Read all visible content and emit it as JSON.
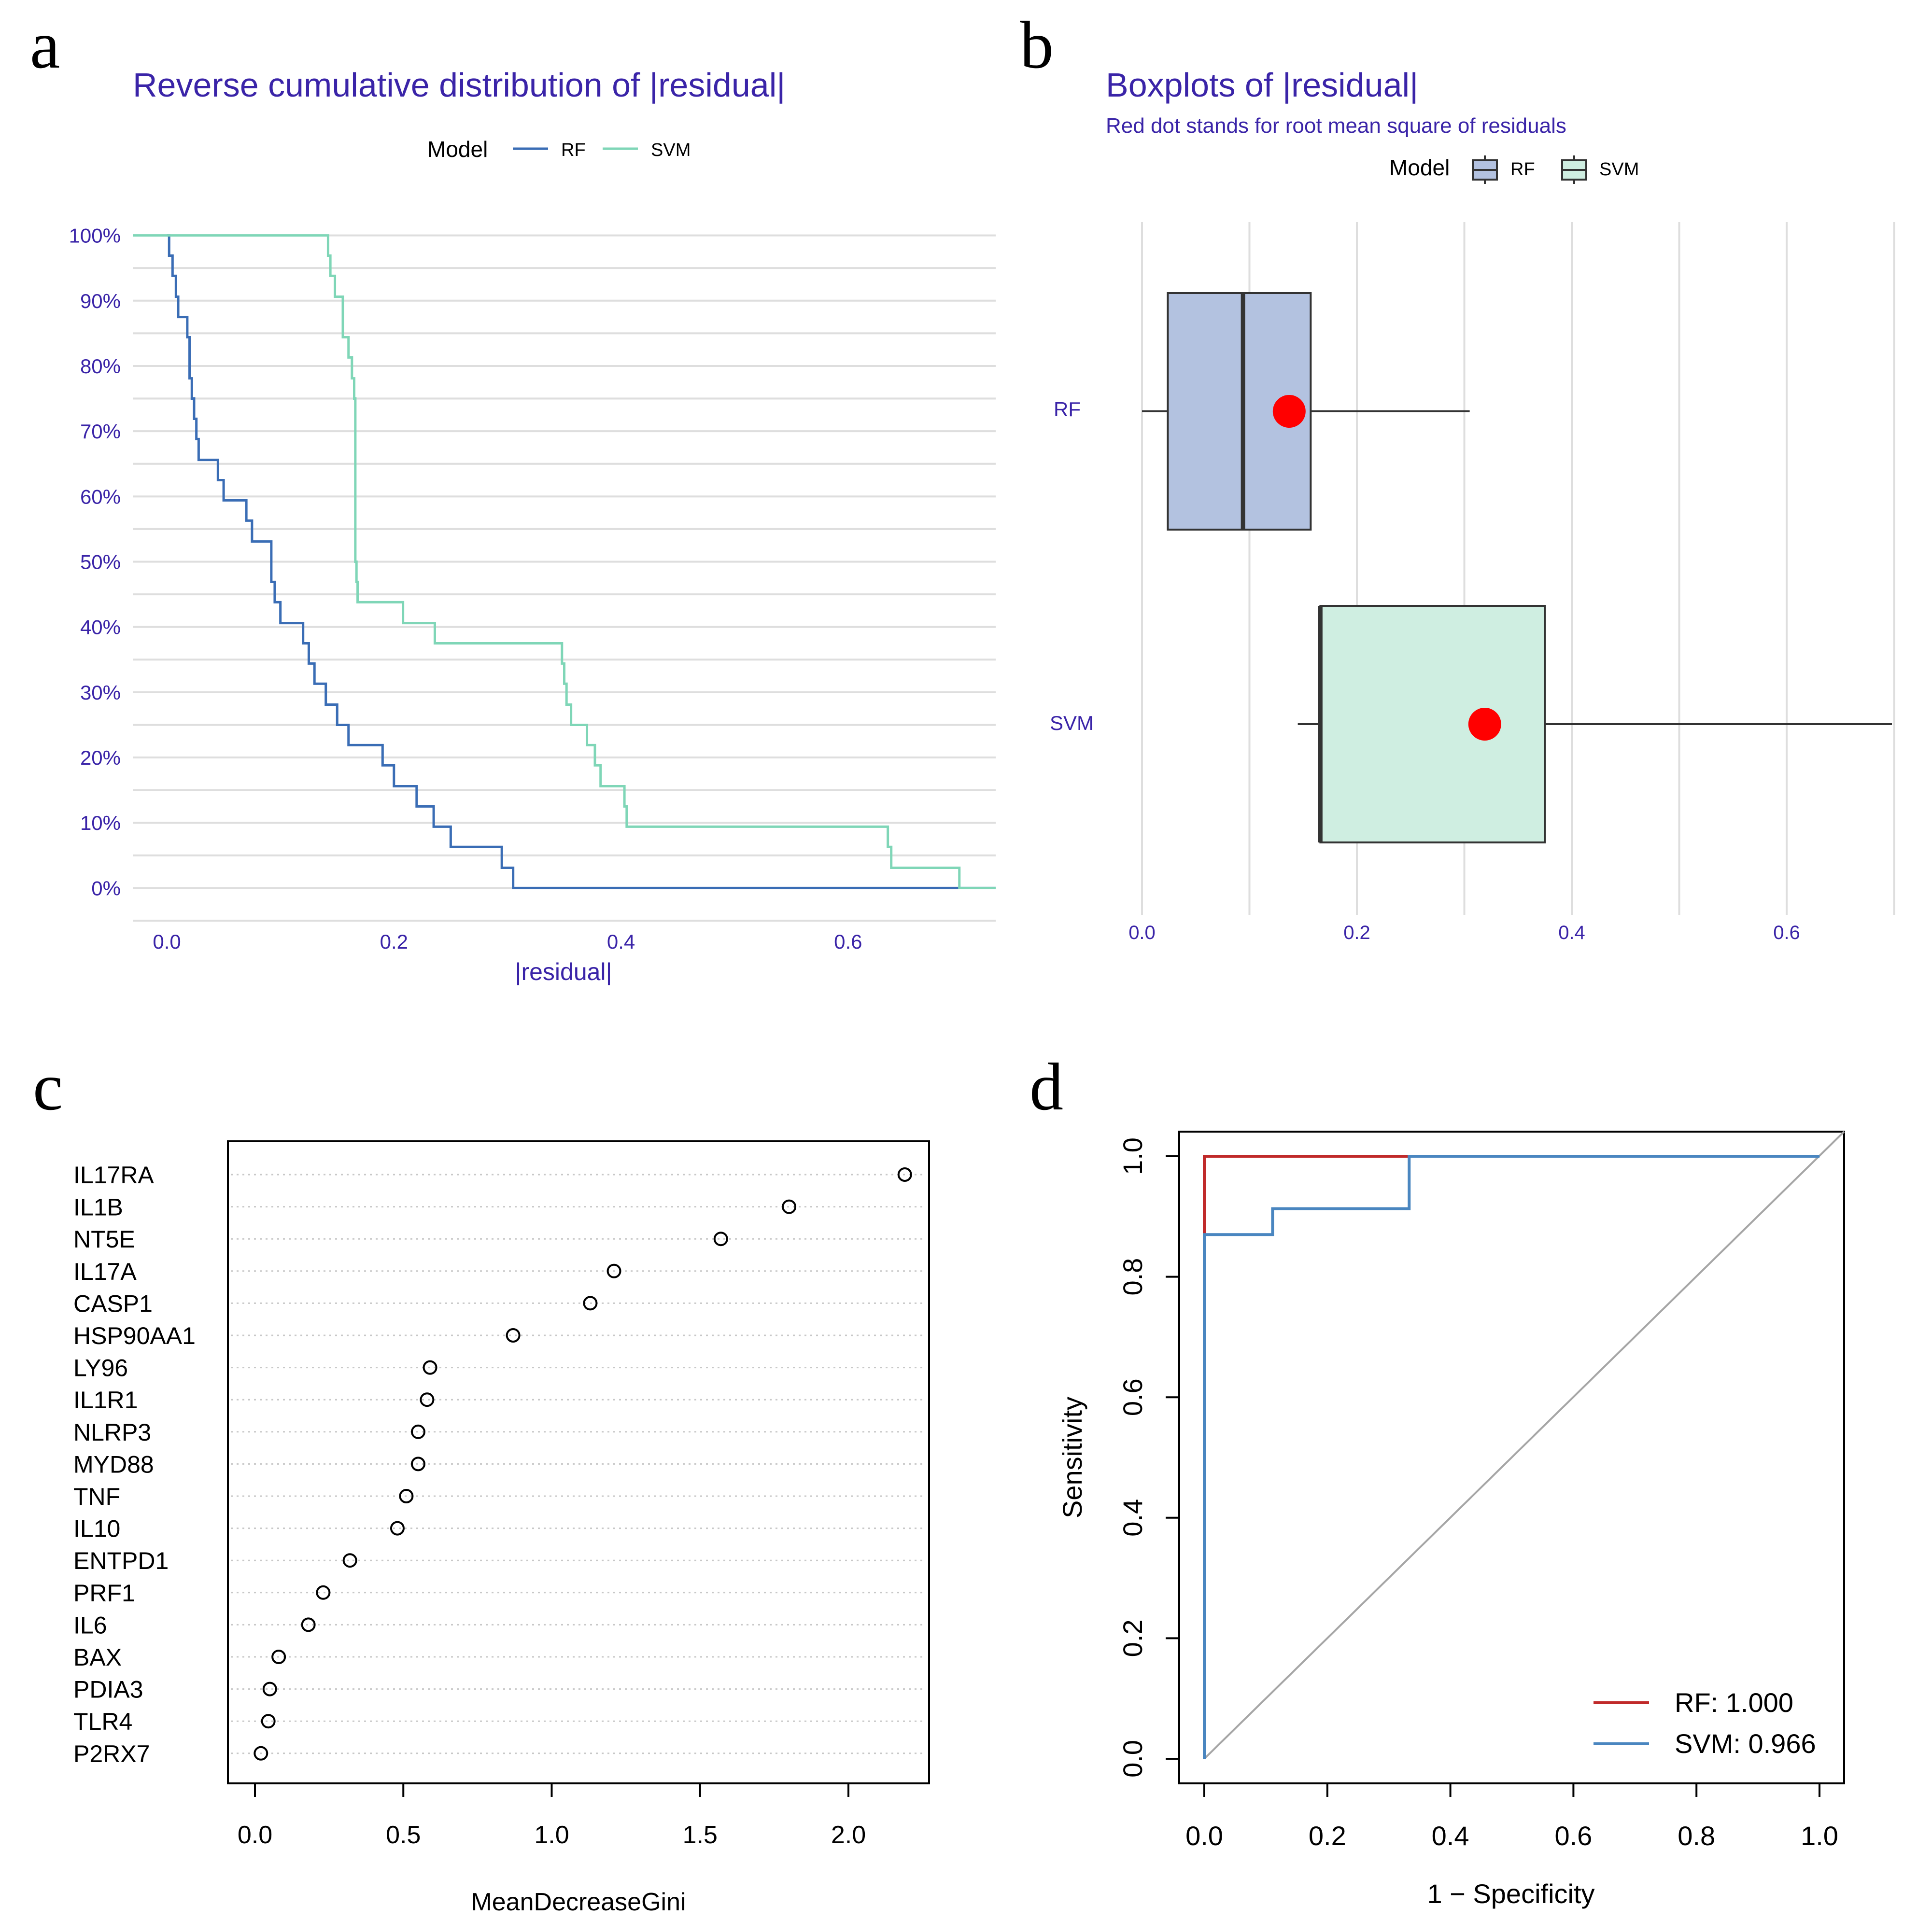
{
  "colors": {
    "panel_title": "#3a24a8",
    "grid": "#dedede",
    "rf_line": "#3a6db5",
    "svm_line": "#7fd6b7",
    "rf_fill": "#b3c2e0",
    "svm_fill": "#cfeee1",
    "rmse_dot": "#ff0000",
    "roc_rf": "#c02a2a",
    "roc_svm": "#4a86c0",
    "diagonal": "#a6a6a6",
    "dotline": "#c8c8c8",
    "ink": "#000000"
  },
  "chart_data": [
    {
      "panel": "a",
      "type": "line",
      "title": "Reverse cumulative distribution of |residual|",
      "xlabel": "|residual|",
      "ylabel": "",
      "xlim": [
        -0.03,
        0.73
      ],
      "ylim": [
        -0.05,
        1.05
      ],
      "xticks": [
        0.0,
        0.2,
        0.4,
        0.6
      ],
      "xtick_labels": [
        "0.0",
        "0.2",
        "0.4",
        "0.6"
      ],
      "yticks": [
        0,
        0.1,
        0.2,
        0.3,
        0.4,
        0.5,
        0.6,
        0.7,
        0.8,
        0.9,
        1.0
      ],
      "ytick_labels": [
        "0%",
        "10%",
        "20%",
        "30%",
        "40%",
        "50%",
        "60%",
        "70%",
        "80%",
        "90%",
        "100%"
      ],
      "legend": {
        "title": "Model",
        "entries": [
          "RF",
          "SVM"
        ],
        "position": "top"
      },
      "series": [
        {
          "name": "RF",
          "x": [
            0.0,
            0.002,
            0.005,
            0.008,
            0.01,
            0.012,
            0.018,
            0.02,
            0.022,
            0.024,
            0.026,
            0.028,
            0.045,
            0.05,
            0.07,
            0.075,
            0.08,
            0.092,
            0.095,
            0.1,
            0.12,
            0.125,
            0.13,
            0.14,
            0.15,
            0.16,
            0.19,
            0.2,
            0.22,
            0.235,
            0.25,
            0.295,
            0.305,
            0.73
          ],
          "y": [
            1.0,
            0.969,
            0.938,
            0.906,
            0.875,
            0.875,
            0.844,
            0.781,
            0.75,
            0.719,
            0.688,
            0.656,
            0.625,
            0.594,
            0.563,
            0.531,
            0.531,
            0.469,
            0.438,
            0.406,
            0.375,
            0.344,
            0.313,
            0.281,
            0.25,
            0.219,
            0.188,
            0.156,
            0.125,
            0.094,
            0.063,
            0.031,
            0.0,
            0.0
          ]
        },
        {
          "name": "SVM",
          "x": [
            -0.03,
            0.142,
            0.144,
            0.148,
            0.155,
            0.16,
            0.163,
            0.165,
            0.166,
            0.167,
            0.168,
            0.208,
            0.236,
            0.348,
            0.35,
            0.352,
            0.356,
            0.37,
            0.377,
            0.382,
            0.403,
            0.405,
            0.43,
            0.44,
            0.635,
            0.638,
            0.64,
            0.698,
            0.73
          ],
          "y": [
            1.0,
            0.969,
            0.938,
            0.906,
            0.844,
            0.813,
            0.781,
            0.75,
            0.5,
            0.469,
            0.438,
            0.406,
            0.375,
            0.344,
            0.313,
            0.281,
            0.25,
            0.219,
            0.188,
            0.156,
            0.125,
            0.094,
            0.094,
            0.094,
            0.063,
            0.031,
            0.031,
            0.0,
            0.0
          ]
        }
      ]
    },
    {
      "panel": "b",
      "type": "box",
      "title": "Boxplots of |residual|",
      "subtitle": "Red dot stands for root mean square of residuals",
      "xlim": [
        -0.01,
        0.7
      ],
      "xticks": [
        0.0,
        0.2,
        0.4,
        0.6
      ],
      "xtick_labels": [
        "0.0",
        "0.2",
        "0.4",
        "0.6"
      ],
      "legend": {
        "title": "Model",
        "entries": [
          "RF",
          "SVM"
        ],
        "position": "top"
      },
      "boxes": [
        {
          "name": "RF",
          "min": 0.0,
          "q1": 0.024,
          "median": 0.094,
          "q3": 0.157,
          "max": 0.305,
          "rmse": 0.137
        },
        {
          "name": "SVM",
          "min": 0.145,
          "q1": 0.166,
          "median": 0.166,
          "q3": 0.375,
          "max": 0.698,
          "rmse": 0.319
        }
      ]
    },
    {
      "panel": "c",
      "type": "scatter",
      "title": "",
      "xlabel": "MeanDecreaseGini",
      "ylabel": "",
      "xlim": [
        -0.09,
        2.27
      ],
      "xticks": [
        0.0,
        0.5,
        1.0,
        1.5,
        2.0
      ],
      "xtick_labels": [
        "0.0",
        "0.5",
        "1.0",
        "1.5",
        "2.0"
      ],
      "categories": [
        "IL17RA",
        "IL1B",
        "NT5E",
        "IL17A",
        "CASP1",
        "HSP90AA1",
        "LY96",
        "IL1R1",
        "NLRP3",
        "MYD88",
        "TNF",
        "IL10",
        "ENTPD1",
        "PRF1",
        "IL6",
        "BAX",
        "PDIA3",
        "TLR4",
        "P2RX7"
      ],
      "values": [
        2.19,
        1.8,
        1.57,
        1.21,
        1.13,
        0.87,
        0.59,
        0.58,
        0.55,
        0.55,
        0.51,
        0.48,
        0.32,
        0.23,
        0.18,
        0.08,
        0.05,
        0.045,
        0.02
      ]
    },
    {
      "panel": "d",
      "type": "line",
      "title": "",
      "xlabel": "1 − Specificity",
      "ylabel": "Sensitivity",
      "xlim": [
        -0.04,
        1.04
      ],
      "ylim": [
        -0.04,
        1.04
      ],
      "xticks": [
        0.0,
        0.2,
        0.4,
        0.6,
        0.8,
        1.0
      ],
      "xtick_labels": [
        "0.0",
        "0.2",
        "0.4",
        "0.6",
        "0.8",
        "1.0"
      ],
      "yticks": [
        0.0,
        0.2,
        0.4,
        0.6,
        0.8,
        1.0
      ],
      "ytick_labels": [
        "0.0",
        "0.2",
        "0.4",
        "0.6",
        "0.8",
        "1.0"
      ],
      "legend": {
        "entries": [
          "RF: 1.000",
          "SVM: 0.966"
        ],
        "position": "bottom-right"
      },
      "series": [
        {
          "name": "RF",
          "auc": 1.0,
          "x": [
            0.0,
            0.0,
            0.0,
            0.333,
            0.333,
            1.0
          ],
          "y": [
            0.0,
            0.875,
            1.0,
            1.0,
            1.0,
            1.0
          ]
        },
        {
          "name": "SVM",
          "auc": 0.966,
          "x": [
            0.0,
            0.0,
            0.111,
            0.111,
            0.333,
            0.333,
            1.0
          ],
          "y": [
            0.0,
            0.87,
            0.87,
            0.913,
            0.913,
            1.0,
            1.0
          ]
        }
      ],
      "diagonal": {
        "x": [
          0,
          1
        ],
        "y": [
          0,
          1
        ]
      }
    }
  ],
  "panel_labels": [
    "a",
    "b",
    "c",
    "d"
  ]
}
